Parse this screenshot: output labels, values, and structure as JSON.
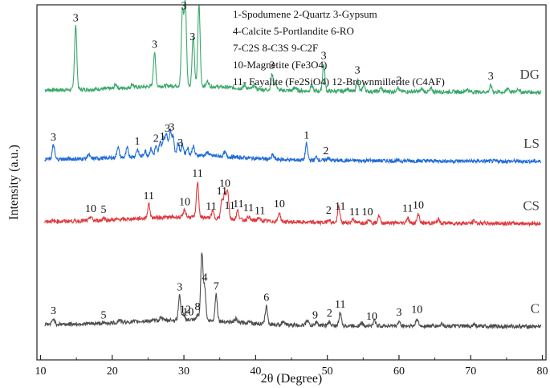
{
  "chart_data": {
    "type": "line",
    "xlabel": "2θ (Degree)",
    "ylabel": "Intensity (a.u.)",
    "xlim": [
      9.5,
      80.5
    ],
    "ylim": [
      0,
      100
    ],
    "xticks": [
      10,
      20,
      30,
      40,
      50,
      60,
      70,
      80
    ],
    "yticks_shown": false,
    "grid": false,
    "legend": {
      "placement": "top-right",
      "lines": [
        "1-Spodumene 2-Quartz  3-Gypsum",
        "4-Calcite          5-Portlandite       6-RO",
        "7-C2S         8-C3S          9-C2F",
        "10-Magnetite (Fe3O4)",
        "11- Fayalite (Fe2SiO4)      12-Brownmillerite (C4AF)"
      ]
    },
    "series": [
      {
        "name": "DG",
        "color": "#3aa86b",
        "baseline": 76,
        "peaks": [
          [
            14.9,
            18
          ],
          [
            20.5,
            1.2
          ],
          [
            22.8,
            1
          ],
          [
            25.9,
            9.5
          ],
          [
            29.8,
            21
          ],
          [
            30.2,
            23
          ],
          [
            31.3,
            14
          ],
          [
            32.1,
            23
          ],
          [
            33.3,
            1.5
          ],
          [
            38.5,
            1
          ],
          [
            39.8,
            1.2
          ],
          [
            42.3,
            4.5
          ],
          [
            42.8,
            2
          ],
          [
            45.5,
            1
          ],
          [
            47.8,
            1.5
          ],
          [
            49.5,
            7.5
          ],
          [
            52.8,
            1
          ],
          [
            54.2,
            3.5
          ],
          [
            55.1,
            2
          ],
          [
            57.5,
            1
          ],
          [
            59.8,
            1.2
          ],
          [
            63.2,
            0.8
          ],
          [
            64.5,
            0.8
          ],
          [
            69.5,
            0.8
          ],
          [
            72.8,
            1.8
          ],
          [
            75.2,
            1.2
          ],
          [
            76.6,
            1
          ]
        ],
        "labels": [
          [
            14.9,
            "3"
          ],
          [
            25.9,
            "3"
          ],
          [
            30.0,
            "3"
          ],
          [
            31.2,
            "3"
          ],
          [
            32.1,
            "3"
          ],
          [
            42.3,
            "3"
          ],
          [
            49.5,
            "3"
          ],
          [
            54.2,
            "3"
          ],
          [
            60.0,
            "3"
          ],
          [
            72.8,
            "3"
          ]
        ]
      },
      {
        "name": "LS",
        "color": "#1f6bd6",
        "baseline": 56.5,
        "peaks": [
          [
            11.8,
            4
          ],
          [
            16.7,
            1.2
          ],
          [
            20.8,
            3
          ],
          [
            22.1,
            2.5
          ],
          [
            23.5,
            2
          ],
          [
            24.6,
            1.5
          ],
          [
            25.4,
            2
          ],
          [
            26.1,
            2.5
          ],
          [
            26.7,
            4
          ],
          [
            27.2,
            5
          ],
          [
            27.6,
            6
          ],
          [
            28.1,
            7
          ],
          [
            28.5,
            5
          ],
          [
            29.2,
            3.5
          ],
          [
            29.8,
            3
          ],
          [
            30.5,
            2
          ],
          [
            31.3,
            2.5
          ],
          [
            33.3,
            1
          ],
          [
            35.7,
            1.2
          ],
          [
            42.4,
            1.2
          ],
          [
            47.1,
            4.5
          ],
          [
            48.5,
            1
          ],
          [
            50.1,
            0.8
          ]
        ],
        "labels": [
          [
            11.8,
            "3"
          ],
          [
            23.5,
            "1"
          ],
          [
            26.1,
            "2"
          ],
          [
            27.0,
            "1"
          ],
          [
            27.7,
            "3"
          ],
          [
            28.3,
            "3"
          ],
          [
            29.5,
            "3"
          ],
          [
            47.1,
            "1"
          ],
          [
            49.8,
            "2"
          ]
        ]
      },
      {
        "name": "CS",
        "color": "#e03a3e",
        "baseline": 39,
        "peaks": [
          [
            17.0,
            1.2
          ],
          [
            18.8,
            0.8
          ],
          [
            25.1,
            4
          ],
          [
            30.1,
            2
          ],
          [
            31.9,
            10
          ],
          [
            34.0,
            2
          ],
          [
            35.3,
            5
          ],
          [
            35.7,
            7
          ],
          [
            36.1,
            8
          ],
          [
            37.5,
            2.5
          ],
          [
            39.0,
            1
          ],
          [
            40.4,
            0.8
          ],
          [
            43.3,
            2.5
          ],
          [
            50.2,
            1
          ],
          [
            51.6,
            4.5
          ],
          [
            53.6,
            1.2
          ],
          [
            55.8,
            1.2
          ],
          [
            57.2,
            2
          ],
          [
            61.2,
            1.5
          ],
          [
            62.7,
            2.5
          ],
          [
            65.5,
            1
          ],
          [
            70.5,
            0.8
          ]
        ],
        "labels": [
          [
            17.0,
            "10"
          ],
          [
            18.8,
            "5"
          ],
          [
            25.1,
            "11"
          ],
          [
            30.1,
            "10"
          ],
          [
            31.9,
            "11"
          ],
          [
            33.8,
            "11"
          ],
          [
            35.3,
            "11"
          ],
          [
            35.7,
            "10"
          ],
          [
            36.4,
            "11"
          ],
          [
            37.6,
            "11"
          ],
          [
            39.0,
            "11"
          ],
          [
            40.6,
            "11"
          ],
          [
            43.3,
            "10"
          ],
          [
            50.2,
            "2"
          ],
          [
            51.8,
            "11"
          ],
          [
            53.8,
            "11"
          ],
          [
            55.6,
            "10"
          ],
          [
            61.2,
            "11"
          ],
          [
            62.7,
            "10"
          ]
        ]
      },
      {
        "name": "C",
        "color": "#4d4d4d",
        "baseline": 10,
        "peaks": [
          [
            11.8,
            1.6
          ],
          [
            21.0,
            0.8
          ],
          [
            26.8,
            1
          ],
          [
            29.4,
            7
          ],
          [
            30.0,
            1.5
          ],
          [
            31.9,
            1.5
          ],
          [
            32.5,
            19
          ],
          [
            32.9,
            9
          ],
          [
            34.5,
            7.5
          ],
          [
            37.2,
            1
          ],
          [
            39.2,
            0.8
          ],
          [
            41.5,
            5
          ],
          [
            43.8,
            0.8
          ],
          [
            47.2,
            1.5
          ],
          [
            48.5,
            1
          ],
          [
            50.3,
            1
          ],
          [
            51.8,
            3.5
          ],
          [
            54.8,
            0.8
          ],
          [
            56.6,
            1.5
          ],
          [
            60.0,
            1.2
          ],
          [
            62.5,
            2
          ],
          [
            66.0,
            0.8
          ],
          [
            70.5,
            0.6
          ]
        ],
        "labels": [
          [
            11.8,
            "3"
          ],
          [
            18.8,
            "5"
          ],
          [
            29.4,
            "3"
          ],
          [
            30.2,
            "12"
          ],
          [
            30.6,
            "10"
          ],
          [
            31.9,
            "8"
          ],
          [
            32.9,
            "4"
          ],
          [
            34.5,
            "7"
          ],
          [
            41.5,
            "6"
          ],
          [
            48.3,
            "9"
          ],
          [
            50.3,
            "2"
          ],
          [
            51.8,
            "11"
          ],
          [
            56.2,
            "10"
          ],
          [
            60.0,
            "3"
          ],
          [
            62.5,
            "10"
          ]
        ]
      }
    ]
  }
}
